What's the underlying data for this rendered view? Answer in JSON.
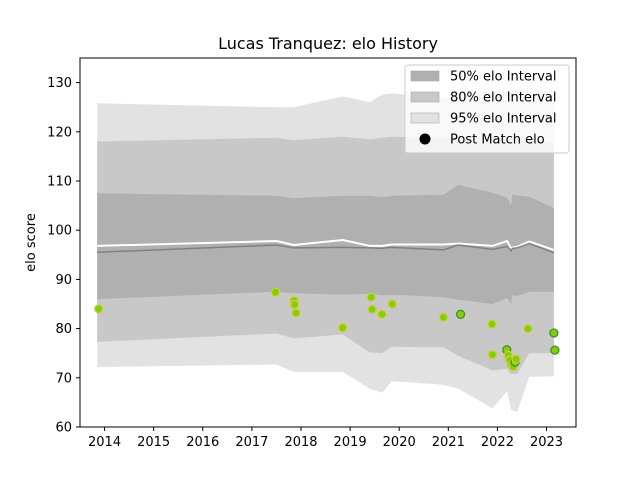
{
  "chart_data": {
    "type": "line",
    "title": "Lucas Tranquez: elo History",
    "xlabel": "",
    "ylabel": "elo score",
    "xlim": [
      2013.5,
      2023.6
    ],
    "ylim": [
      60,
      135
    ],
    "x_ticks": [
      2014,
      2015,
      2016,
      2017,
      2018,
      2019,
      2020,
      2021,
      2022,
      2023
    ],
    "y_ticks": [
      60,
      70,
      80,
      90,
      100,
      110,
      120,
      130
    ],
    "grid": false,
    "legend_position": "top-right",
    "legend": [
      {
        "label": "50% elo Interval",
        "kind": "patch",
        "color": "#b0b0b0"
      },
      {
        "label": "80% elo Interval",
        "kind": "patch",
        "color": "#c8c8c8"
      },
      {
        "label": "95% elo Interval",
        "kind": "patch",
        "color": "#e2e2e2"
      },
      {
        "label": "Post Match elo",
        "kind": "marker",
        "color": "#000000"
      }
    ],
    "colors": {
      "band50": "#b0b0b0",
      "band80": "#c8c8c8",
      "band95": "#e2e2e2",
      "mean_line": "#ffffff",
      "median_line": "#808080",
      "point_fill": "#7cd10f",
      "point_edge_light": "#d8c93a",
      "point_edge_dark": "#4f8a24"
    },
    "bands": {
      "x": [
        2013.85,
        2017.5,
        2017.85,
        2018.85,
        2019.4,
        2019.65,
        2019.85,
        2020.9,
        2021.2,
        2021.9,
        2022.2,
        2022.28,
        2022.3,
        2022.4,
        2022.65,
        2023.15
      ],
      "p95_upper": [
        125.8,
        125.0,
        125.0,
        127.2,
        126.0,
        127.5,
        127.8,
        126.8,
        127.8,
        128.2,
        128.0,
        128.0,
        128.2,
        128.2,
        128.0,
        127.8
      ],
      "p80_upper": [
        118.0,
        118.8,
        118.3,
        119.0,
        118.5,
        118.8,
        119.0,
        118.8,
        119.2,
        118.8,
        118.3,
        117.6,
        118.6,
        118.8,
        118.7,
        117.8
      ],
      "p50_upper": [
        107.5,
        107.0,
        106.5,
        107.0,
        107.0,
        106.7,
        107.0,
        107.2,
        109.2,
        107.6,
        106.6,
        105.0,
        107.3,
        107.0,
        106.8,
        104.5
      ],
      "p50_lower": [
        86.0,
        87.5,
        87.2,
        86.9,
        87.1,
        86.8,
        86.9,
        86.4,
        85.9,
        85.0,
        86.2,
        85.0,
        86.8,
        86.6,
        87.5,
        87.5
      ],
      "p80_lower": [
        77.3,
        79.0,
        78.0,
        78.8,
        75.2,
        75.0,
        76.3,
        76.2,
        74.5,
        71.5,
        71.8,
        70.6,
        70.8,
        70.8,
        75.0,
        75.0
      ],
      "p95_lower": [
        72.2,
        72.7,
        71.2,
        71.2,
        67.8,
        67.0,
        69.3,
        68.6,
        67.8,
        63.8,
        67.3,
        63.5,
        63.4,
        63.0,
        70.2,
        70.3
      ]
    },
    "series": [
      {
        "role": "mean",
        "x": [
          2013.85,
          2017.5,
          2017.85,
          2018.85,
          2019.4,
          2019.65,
          2019.85,
          2020.9,
          2021.2,
          2021.9,
          2022.2,
          2022.28,
          2022.3,
          2022.4,
          2022.65,
          2023.15
        ],
        "values": [
          96.8,
          97.8,
          97.0,
          98.0,
          96.8,
          96.8,
          97.1,
          97.1,
          97.3,
          96.8,
          97.8,
          96.2,
          96.5,
          96.6,
          97.7,
          96.0
        ]
      },
      {
        "role": "median",
        "x": [
          2013.85,
          2017.5,
          2017.85,
          2018.85,
          2019.4,
          2019.65,
          2019.85,
          2020.9,
          2021.2,
          2021.9,
          2022.2,
          2022.28,
          2022.3,
          2022.4,
          2022.65,
          2023.15
        ],
        "values": [
          95.5,
          97.0,
          96.4,
          96.5,
          96.4,
          96.3,
          96.5,
          96.0,
          97.0,
          96.1,
          96.7,
          95.8,
          96.3,
          96.4,
          97.3,
          95.4
        ]
      }
    ],
    "points": [
      {
        "x": 2013.88,
        "y": 84.0,
        "edge": "light"
      },
      {
        "x": 2017.48,
        "y": 87.4,
        "edge": "light"
      },
      {
        "x": 2017.86,
        "y": 85.7,
        "edge": "light"
      },
      {
        "x": 2017.87,
        "y": 84.9,
        "edge": "light"
      },
      {
        "x": 2017.9,
        "y": 83.2,
        "edge": "light"
      },
      {
        "x": 2018.85,
        "y": 80.2,
        "edge": "light"
      },
      {
        "x": 2019.43,
        "y": 86.4,
        "edge": "light"
      },
      {
        "x": 2019.45,
        "y": 83.9,
        "edge": "light"
      },
      {
        "x": 2019.65,
        "y": 82.9,
        "edge": "light"
      },
      {
        "x": 2019.86,
        "y": 85.0,
        "edge": "light"
      },
      {
        "x": 2020.9,
        "y": 82.3,
        "edge": "light"
      },
      {
        "x": 2021.25,
        "y": 82.9,
        "edge": "dark"
      },
      {
        "x": 2021.89,
        "y": 80.9,
        "edge": "light"
      },
      {
        "x": 2021.9,
        "y": 74.7,
        "edge": "light"
      },
      {
        "x": 2022.19,
        "y": 75.7,
        "edge": "dark"
      },
      {
        "x": 2022.22,
        "y": 74.6,
        "edge": "light"
      },
      {
        "x": 2022.25,
        "y": 73.6,
        "edge": "light"
      },
      {
        "x": 2022.28,
        "y": 72.6,
        "edge": "light"
      },
      {
        "x": 2022.32,
        "y": 72.3,
        "edge": "light"
      },
      {
        "x": 2022.36,
        "y": 73.2,
        "edge": "dark"
      },
      {
        "x": 2022.38,
        "y": 73.8,
        "edge": "light"
      },
      {
        "x": 2022.62,
        "y": 80.0,
        "edge": "light"
      },
      {
        "x": 2023.15,
        "y": 79.1,
        "edge": "dark"
      },
      {
        "x": 2023.17,
        "y": 75.6,
        "edge": "dark"
      }
    ]
  }
}
